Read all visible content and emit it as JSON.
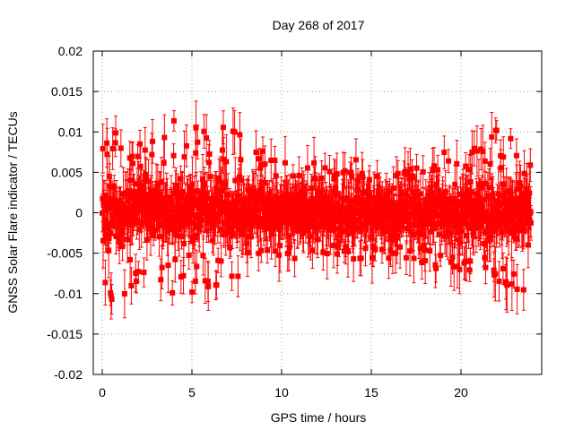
{
  "chart_data": {
    "type": "scatter",
    "title": "Day 268 of 2017",
    "xlabel": "GPS time / hours",
    "ylabel": "GNSS Solar Flare indicator / TECUs",
    "xlim": [
      -0.5,
      24.5
    ],
    "ylim": [
      -0.02,
      0.02
    ],
    "xticks": [
      0,
      5,
      10,
      15,
      20
    ],
    "xtick_labels": [
      "0",
      "5",
      "10",
      "15",
      "20"
    ],
    "yticks": [
      -0.02,
      -0.015,
      -0.01,
      -0.005,
      0,
      0.005,
      0.01,
      0.015,
      0.02
    ],
    "ytick_labels": [
      "-0.02",
      "-0.015",
      "-0.01",
      "-0.005",
      "0",
      "0.005",
      "0.01",
      "0.015",
      "0.02"
    ],
    "grid": true,
    "marker": "square",
    "error_bars": true,
    "color": "#ff0000",
    "series": [
      {
        "x": [
          0.0,
          0.5,
          1.0,
          1.5,
          2.0,
          2.5,
          3.0,
          3.5,
          4.0,
          4.5,
          5.0,
          5.5,
          6.0,
          6.5,
          7.0,
          7.5,
          8.0,
          8.5,
          9.0,
          9.5,
          10.0,
          10.5,
          11.0,
          11.5,
          12.0,
          12.5,
          13.0,
          13.5,
          14.0,
          14.5,
          15.0,
          15.5,
          16.0,
          16.5,
          17.0,
          17.5,
          18.0,
          18.5,
          19.0,
          19.5,
          20.0,
          20.5,
          21.0,
          21.5,
          22.0,
          22.5,
          23.0,
          23.5,
          23.9
        ],
        "y_min": [
          -0.012,
          -0.012,
          -0.013,
          -0.011,
          -0.011,
          -0.01,
          -0.01,
          -0.01,
          -0.011,
          -0.01,
          -0.011,
          -0.01,
          -0.01,
          -0.01,
          -0.009,
          -0.01,
          -0.012,
          -0.007,
          -0.006,
          -0.006,
          -0.006,
          -0.006,
          -0.006,
          -0.006,
          -0.006,
          -0.006,
          -0.006,
          -0.006,
          -0.006,
          -0.007,
          -0.006,
          -0.006,
          -0.006,
          -0.006,
          -0.006,
          -0.006,
          -0.007,
          -0.008,
          -0.009,
          -0.008,
          -0.008,
          -0.008,
          -0.009,
          -0.01,
          -0.009,
          -0.01,
          -0.011,
          -0.015,
          -0.01
        ],
        "y_max": [
          0.01,
          0.011,
          0.012,
          0.011,
          0.01,
          0.01,
          0.01,
          0.01,
          0.013,
          0.01,
          0.012,
          0.014,
          0.011,
          0.012,
          0.011,
          0.012,
          0.014,
          0.009,
          0.009,
          0.007,
          0.007,
          0.006,
          0.006,
          0.006,
          0.007,
          0.006,
          0.006,
          0.006,
          0.007,
          0.008,
          0.011,
          0.007,
          0.006,
          0.006,
          0.006,
          0.006,
          0.007,
          0.007,
          0.009,
          0.008,
          0.007,
          0.008,
          0.009,
          0.01,
          0.012,
          0.01,
          0.011,
          0.013,
          0.007
        ],
        "y_dense_low": [
          -0.006,
          -0.006,
          -0.006,
          -0.005,
          -0.005,
          -0.005,
          -0.005,
          -0.005,
          -0.005,
          -0.005,
          -0.005,
          -0.005,
          -0.005,
          -0.005,
          -0.005,
          -0.005,
          -0.005,
          -0.004,
          -0.004,
          -0.004,
          -0.004,
          -0.004,
          -0.004,
          -0.004,
          -0.004,
          -0.004,
          -0.004,
          -0.004,
          -0.004,
          -0.004,
          -0.004,
          -0.004,
          -0.004,
          -0.004,
          -0.004,
          -0.004,
          -0.004,
          -0.004,
          -0.005,
          -0.005,
          -0.005,
          -0.005,
          -0.005,
          -0.005,
          -0.005,
          -0.005,
          -0.006,
          -0.006,
          -0.005
        ],
        "y_dense_high": [
          0.006,
          0.006,
          0.006,
          0.006,
          0.006,
          0.006,
          0.006,
          0.006,
          0.006,
          0.006,
          0.006,
          0.006,
          0.006,
          0.006,
          0.006,
          0.006,
          0.006,
          0.005,
          0.005,
          0.004,
          0.004,
          0.004,
          0.004,
          0.004,
          0.004,
          0.004,
          0.004,
          0.004,
          0.004,
          0.004,
          0.004,
          0.004,
          0.004,
          0.004,
          0.004,
          0.004,
          0.004,
          0.005,
          0.005,
          0.005,
          0.005,
          0.005,
          0.005,
          0.006,
          0.006,
          0.006,
          0.006,
          0.007,
          0.005
        ]
      }
    ]
  }
}
